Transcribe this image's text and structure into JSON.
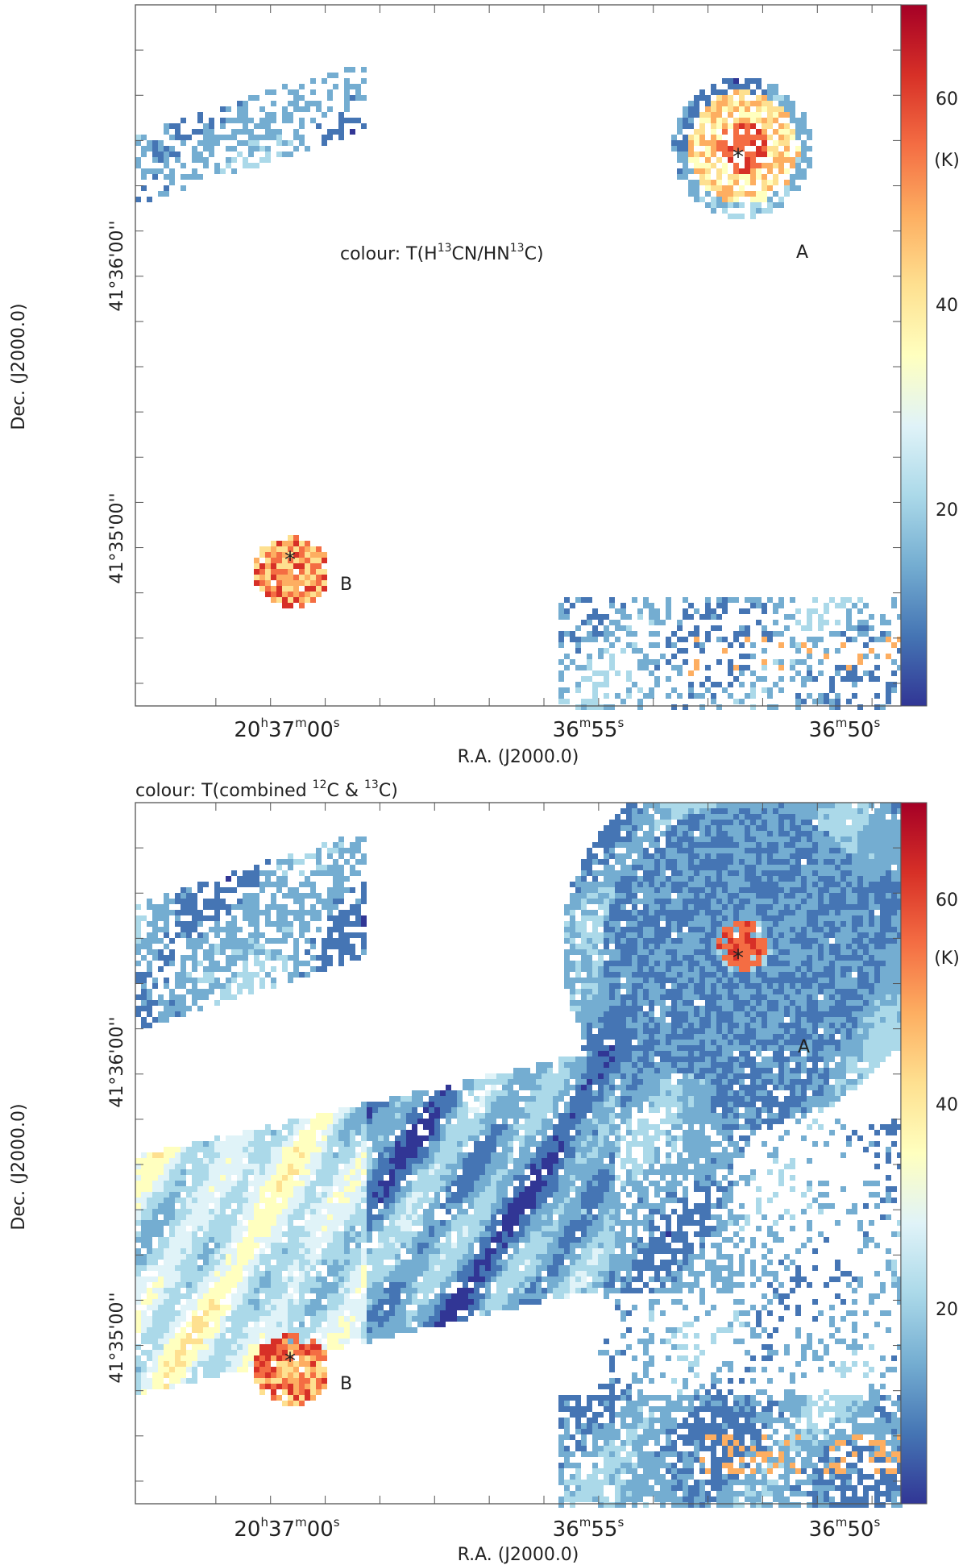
{
  "colors": {
    "colormap": [
      "#313695",
      "#4575b4",
      "#74add1",
      "#abd9e9",
      "#e0f3f8",
      "#ffffbf",
      "#fee090",
      "#fdae61",
      "#f46d43",
      "#d73027",
      "#a50026"
    ],
    "background": "#ffffff",
    "axis": "#555555",
    "marker": "#111111"
  },
  "chart_data": [
    {
      "type": "heatmap",
      "title": "colour: T(H13CN/HN13C)",
      "title_parts": {
        "prefix": "colour: T(H",
        "sup1": "13",
        "mid": "CN/HN",
        "sup2": "13",
        "suffix": "C)"
      },
      "xlabel": "R.A. (J2000.0)",
      "ylabel": "Dec. (J2000.0)",
      "x_ticklabels": [
        {
          "h": "20",
          "hs": "h",
          "m": "37",
          "ms": "m",
          "s": "00",
          "ss": "s"
        },
        {
          "m": "36",
          "ms": "m",
          "s": "55",
          "ss": "s"
        },
        {
          "m": "36",
          "ms": "m",
          "s": "50",
          "ss": "s"
        }
      ],
      "y_ticklabels": [
        "41°36'00''",
        "41°35'00''"
      ],
      "colorbar": {
        "unit": "(K)",
        "range": [
          0,
          70
        ],
        "ticks": [
          "60",
          "40",
          "20"
        ]
      },
      "sources": [
        {
          "name": "A",
          "x_seconds_ra": 52.1,
          "dec_offset_arcsec": 103
        },
        {
          "name": "B",
          "x_seconds_ra": 60.0,
          "dec_offset_arcsec": -5
        }
      ],
      "grid": false
    },
    {
      "type": "heatmap",
      "title": "colour: T(combined 12C & 13C)",
      "title_parts": {
        "prefix": "colour: T(combined ",
        "sup1": "12",
        "mid": "C & ",
        "sup2": "13",
        "suffix": "C)"
      },
      "xlabel": "R.A. (J2000.0)",
      "ylabel": "Dec. (J2000.0)",
      "x_ticklabels": [
        {
          "h": "20",
          "hs": "h",
          "m": "37",
          "ms": "m",
          "s": "00",
          "ss": "s"
        },
        {
          "m": "36",
          "ms": "m",
          "s": "55",
          "ss": "s"
        },
        {
          "m": "36",
          "ms": "m",
          "s": "50",
          "ss": "s"
        }
      ],
      "y_ticklabels": [
        "41°36'00''",
        "41°35'00''"
      ],
      "colorbar": {
        "unit": "(K)",
        "range": [
          0,
          70
        ],
        "ticks": [
          "60",
          "40",
          "20"
        ]
      },
      "sources": [
        {
          "name": "A",
          "x_seconds_ra": 52.1,
          "dec_offset_arcsec": 103
        },
        {
          "name": "B",
          "x_seconds_ra": 60.0,
          "dec_offset_arcsec": -5
        }
      ],
      "grid": false
    }
  ]
}
